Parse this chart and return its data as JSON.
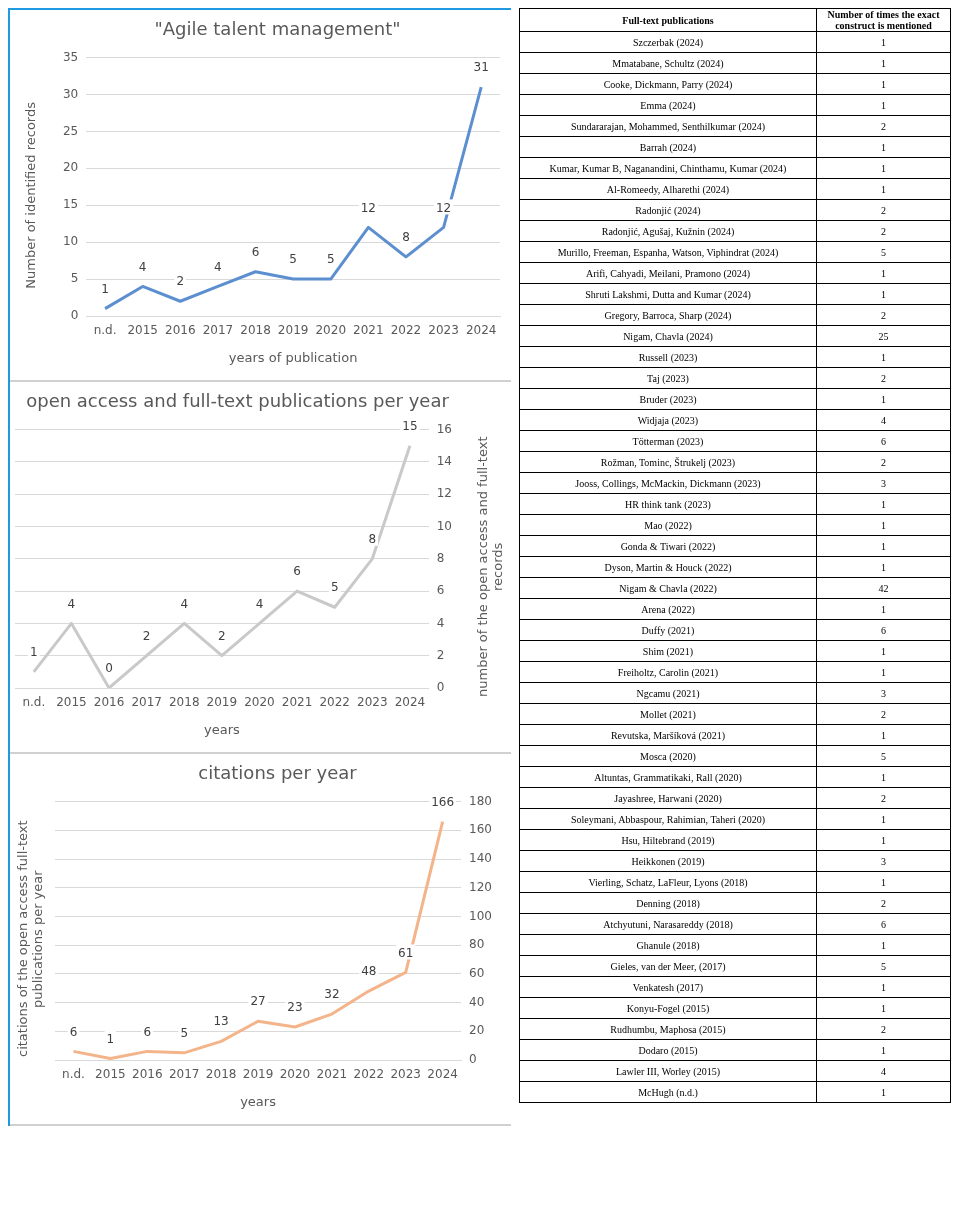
{
  "chart_data": [
    {
      "type": "line",
      "title": "\"Agile talent management\"",
      "xlabel": "years of publication",
      "ylabel": "Number of identified records",
      "categories": [
        "n.d.",
        "2015",
        "2016",
        "2017",
        "2018",
        "2019",
        "2020",
        "2021",
        "2022",
        "2023",
        "2024"
      ],
      "values": [
        1,
        4,
        2,
        4,
        6,
        5,
        5,
        12,
        8,
        12,
        31
      ],
      "color": "#5b8fcf",
      "ylim": [
        0,
        35
      ],
      "yticks": [
        0,
        5,
        10,
        15,
        20,
        25,
        30,
        35
      ],
      "grid": "y",
      "data_labels": true
    },
    {
      "type": "line",
      "title": "open access and full-text publications per year",
      "xlabel": "years",
      "ylabel": "number of the open access and full-text records",
      "categories": [
        "n.d.",
        "2015",
        "2016",
        "2017",
        "2018",
        "2019",
        "2020",
        "2021",
        "2022",
        "2023",
        "2024"
      ],
      "values": [
        1,
        4,
        0,
        2,
        4,
        2,
        4,
        6,
        5,
        8,
        15
      ],
      "color": "#c9c9c9",
      "ylim": [
        0,
        16
      ],
      "yticks": [
        0,
        2,
        4,
        6,
        8,
        10,
        12,
        14,
        16
      ],
      "grid": "y",
      "data_labels": true
    },
    {
      "type": "line",
      "title": "citations per year",
      "xlabel": "years",
      "ylabel": "citations of the open access full-text publications per year",
      "categories": [
        "n.d.",
        "2015",
        "2016",
        "2017",
        "2018",
        "2019",
        "2020",
        "2021",
        "2022",
        "2023",
        "2024"
      ],
      "values": [
        6,
        1,
        6,
        5,
        13,
        27,
        23,
        32,
        48,
        61,
        166
      ],
      "color": "#f4b48a",
      "ylim": [
        0,
        180
      ],
      "yticks": [
        0,
        20,
        40,
        60,
        80,
        100,
        120,
        140,
        160,
        180
      ],
      "grid": "y",
      "data_labels": true
    },
    {
      "type": "other",
      "annotations": [
        "Full-text publications",
        "Number of times the exact construct is mentioned"
      ],
      "data_labels": true,
      "categories": [
        "Szczerbak (2024)",
        "Mmatabane, Schultz (2024)",
        "Cooke, Dickmann, Parry (2024)",
        "Emma (2024)",
        "Sundararajan, Mohammed, Senthilkumar (2024)",
        "Barrah (2024)",
        "Kumar, Kumar B, Naganandini, Chinthamu, Kumar (2024)",
        "Al-Romeedy, Alharethi (2024)",
        "Radonjić (2024)",
        "Radonjić, Agušaj, Kužnin (2024)",
        "Murillo, Freeman, Espanha, Watson, Viphindrat (2024)",
        "Arifi, Cahyadi, Meilani, Pramono (2024)",
        "Shruti Lakshmi, Dutta and Kumar (2024)",
        "Gregory, Barroca, Sharp (2024)",
        "Nigam, Chavla (2024)",
        "Russell (2023)",
        "Taj (2023)",
        "Bruder (2023)",
        "Widjaja (2023)",
        "Tötterman (2023)",
        "Rožman, Tominc, Štrukelj (2023)",
        "Jooss, Collings, McMackin, Dickmann (2023)",
        "HR think tank (2023)",
        "Mao (2022)",
        "Gonda & Tiwari (2022)",
        "Dyson, Martin & Houck (2022)",
        "Nigam & Chavla (2022)",
        "Arena (2022)",
        "Duffy (2021)",
        "Shim (2021)",
        "Freiholtz, Carolin (2021)",
        "Ngcamu (2021)",
        "Mollet (2021)",
        "Revutska, Maršíková (2021)",
        "Mosca (2020)",
        "Altuntas, Grammatikaki, Rall (2020)",
        "Jayashree, Harwani (2020)",
        "Soleymani, Abbaspour, Rahimian, Taheri (2020)",
        "Hsu, Hiltebrand (2019)",
        "Heikkonen (2019)",
        "Vierling, Schatz, LaFleur, Lyons (2018)",
        "Denning (2018)",
        "Atchyutuni, Narasareddy (2018)",
        "Ghanule (2018)",
        "Gieles, van der Meer, (2017)",
        "Venkatesh (2017)",
        "Konyu-Fogel (2015)",
        "Rudhumbu, Maphosa (2015)",
        "Dodaro (2015)",
        "Lawler III, Worley (2015)",
        "McHugh (n.d.)"
      ],
      "values": [
        1,
        1,
        1,
        1,
        2,
        1,
        1,
        1,
        2,
        2,
        5,
        1,
        1,
        2,
        25,
        1,
        2,
        1,
        4,
        6,
        2,
        3,
        1,
        1,
        1,
        1,
        42,
        1,
        6,
        1,
        1,
        3,
        2,
        1,
        5,
        1,
        2,
        1,
        1,
        3,
        1,
        2,
        6,
        1,
        5,
        1,
        1,
        2,
        1,
        4,
        1
      ]
    }
  ]
}
